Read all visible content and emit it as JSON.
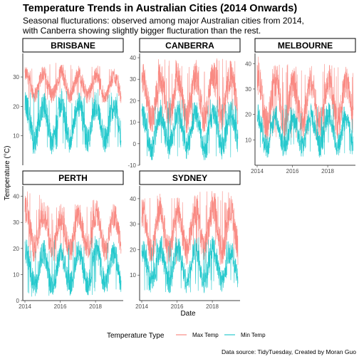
{
  "chart_data": {
    "type": "line",
    "title": "Temperature Trends in Australian Cities (2014 Onwards)",
    "subtitle_lines": [
      "Seasonal flucturations: observed among major Australian cities from 2014,",
      "with Canberra showing slightly bigger flucturation than the rest."
    ],
    "xlabel": "Date",
    "ylabel": "Temperature (°C)",
    "legend": {
      "title": "Temperature Type",
      "position": "bottom",
      "entries": [
        {
          "name": "Max Temp",
          "color": "#F8766D"
        },
        {
          "name": "Min Temp",
          "color": "#00BFC4"
        }
      ]
    },
    "caption": "Data source: TidyTuesday, Created by Moran Guo",
    "x_ticks": [
      "2014",
      "2016",
      "2018"
    ],
    "xlim": [
      2014.0,
      2019.45
    ],
    "grid": false,
    "panels": [
      {
        "city": "BRISBANE",
        "ylim": [
          0,
          38
        ],
        "y_ticks": [
          10,
          20,
          30
        ],
        "series": [
          {
            "name": "Max Temp",
            "min_by_year": [
              [
                2014,
                21.5
              ],
              [
                2016,
                21.0
              ],
              [
                2018,
                21.0
              ],
              [
                2019.4,
                20.5
              ]
            ],
            "max_by_year": [
              [
                2014,
                34.0
              ],
              [
                2016,
                35.0
              ],
              [
                2018,
                34.0
              ],
              [
                2019.4,
                33.0
              ]
            ]
          },
          {
            "name": "Min Temp",
            "min_by_year": [
              [
                2014,
                3.0
              ],
              [
                2016,
                4.0
              ],
              [
                2018,
                4.0
              ],
              [
                2019.4,
                5.0
              ]
            ],
            "max_by_year": [
              [
                2014,
                26.0
              ],
              [
                2016,
                26.5
              ],
              [
                2018,
                26.0
              ],
              [
                2019.4,
                25.5
              ]
            ]
          }
        ]
      },
      {
        "city": "CANBERRA",
        "ylim": [
          -10,
          42
        ],
        "y_ticks": [
          -10,
          0,
          10,
          20,
          30,
          40
        ],
        "series": [
          {
            "name": "Max Temp",
            "min_by_year": [
              [
                2014,
                5.0
              ],
              [
                2016,
                5.0
              ],
              [
                2018,
                5.0
              ],
              [
                2019.4,
                6.0
              ]
            ],
            "max_by_year": [
              [
                2014,
                40.0
              ],
              [
                2016,
                39.0
              ],
              [
                2018,
                40.0
              ],
              [
                2019.4,
                40.5
              ]
            ]
          },
          {
            "name": "Min Temp",
            "min_by_year": [
              [
                2014,
                -8.0
              ],
              [
                2016,
                -7.0
              ],
              [
                2018,
                -8.0
              ],
              [
                2019.4,
                -6.0
              ]
            ],
            "max_by_year": [
              [
                2014,
                20.0
              ],
              [
                2016,
                22.0
              ],
              [
                2018,
                21.0
              ],
              [
                2019.4,
                21.0
              ]
            ]
          }
        ]
      },
      {
        "city": "MELBOURNE",
        "ylim": [
          0,
          44
        ],
        "y_ticks": [
          10,
          20,
          30,
          40
        ],
        "series": [
          {
            "name": "Max Temp",
            "min_by_year": [
              [
                2014,
                10.0
              ],
              [
                2016,
                10.0
              ],
              [
                2018,
                10.0
              ],
              [
                2019.4,
                10.0
              ]
            ],
            "max_by_year": [
              [
                2014,
                43.0
              ],
              [
                2016,
                40.0
              ],
              [
                2018,
                42.0
              ],
              [
                2019.4,
                40.0
              ]
            ]
          },
          {
            "name": "Min Temp",
            "min_by_year": [
              [
                2014,
                3.0
              ],
              [
                2016,
                3.0
              ],
              [
                2018,
                3.0
              ],
              [
                2019.4,
                4.0
              ]
            ],
            "max_by_year": [
              [
                2014,
                25.0
              ],
              [
                2016,
                24.0
              ],
              [
                2018,
                26.0
              ],
              [
                2019.4,
                22.0
              ]
            ]
          }
        ]
      },
      {
        "city": "PERTH",
        "ylim": [
          0,
          44
        ],
        "y_ticks": [
          0,
          10,
          20,
          30,
          40
        ],
        "series": [
          {
            "name": "Max Temp",
            "min_by_year": [
              [
                2014,
                14.0
              ],
              [
                2016,
                15.0
              ],
              [
                2018,
                15.0
              ],
              [
                2019.4,
                15.0
              ]
            ],
            "max_by_year": [
              [
                2014,
                43.0
              ],
              [
                2016,
                37.0
              ],
              [
                2018,
                40.0
              ],
              [
                2019.4,
                38.0
              ]
            ]
          },
          {
            "name": "Min Temp",
            "min_by_year": [
              [
                2014,
                1.0
              ],
              [
                2016,
                1.0
              ],
              [
                2018,
                2.0
              ],
              [
                2019.4,
                2.0
              ]
            ],
            "max_by_year": [
              [
                2014,
                25.0
              ],
              [
                2016,
                24.0
              ],
              [
                2018,
                25.0
              ],
              [
                2019.4,
                23.0
              ]
            ]
          }
        ]
      },
      {
        "city": "SYDNEY",
        "ylim": [
          0,
          45
        ],
        "y_ticks": [
          10,
          20,
          30,
          40
        ],
        "series": [
          {
            "name": "Max Temp",
            "min_by_year": [
              [
                2014,
                14.0
              ],
              [
                2016,
                14.0
              ],
              [
                2018,
                14.0
              ],
              [
                2019.4,
                14.0
              ]
            ],
            "max_by_year": [
              [
                2014,
                42.0
              ],
              [
                2016,
                42.0
              ],
              [
                2018,
                44.0
              ],
              [
                2019.4,
                42.0
              ]
            ]
          },
          {
            "name": "Min Temp",
            "min_by_year": [
              [
                2014,
                3.0
              ],
              [
                2016,
                3.0
              ],
              [
                2018,
                3.0
              ],
              [
                2019.4,
                4.0
              ]
            ],
            "max_by_year": [
              [
                2014,
                25.0
              ],
              [
                2016,
                26.0
              ],
              [
                2018,
                26.0
              ],
              [
                2019.4,
                24.0
              ]
            ]
          }
        ]
      }
    ]
  }
}
